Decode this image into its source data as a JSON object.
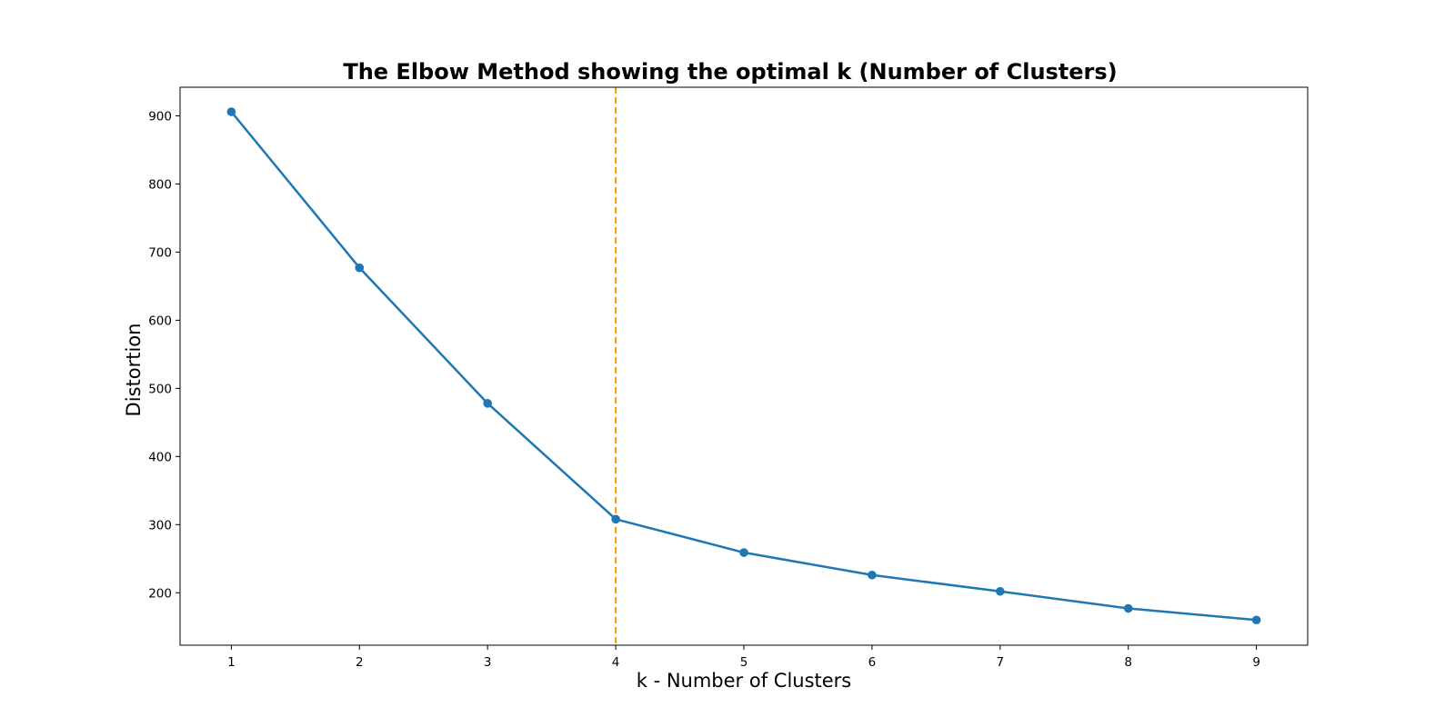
{
  "chart_data": {
    "type": "line",
    "title": "The Elbow Method showing the optimal k (Number of Clusters)",
    "xlabel": "k - Number of Clusters",
    "ylabel": "Distortion",
    "x": [
      1,
      2,
      3,
      4,
      5,
      6,
      7,
      8,
      9
    ],
    "series": [
      {
        "values": [
          906,
          677,
          478,
          308,
          259,
          226,
          202,
          177,
          160
        ]
      }
    ],
    "xlim": [
      0.6,
      9.4
    ],
    "ylim": [
      123,
      942
    ],
    "x_ticks": [
      1,
      2,
      3,
      4,
      5,
      6,
      7,
      8,
      9
    ],
    "y_ticks": [
      200,
      300,
      400,
      500,
      600,
      700,
      800,
      900
    ],
    "x_tick_labels": [
      "1",
      "2",
      "3",
      "4",
      "5",
      "6",
      "7",
      "8",
      "9"
    ],
    "y_tick_labels": [
      "200",
      "300",
      "400",
      "500",
      "600",
      "700",
      "800",
      "900"
    ],
    "vertical_line": {
      "x": 4,
      "style": "dashed",
      "color": "#ff9900"
    },
    "line_color": "#1f77b4",
    "marker": "circle",
    "grid": false,
    "legend": false
  }
}
